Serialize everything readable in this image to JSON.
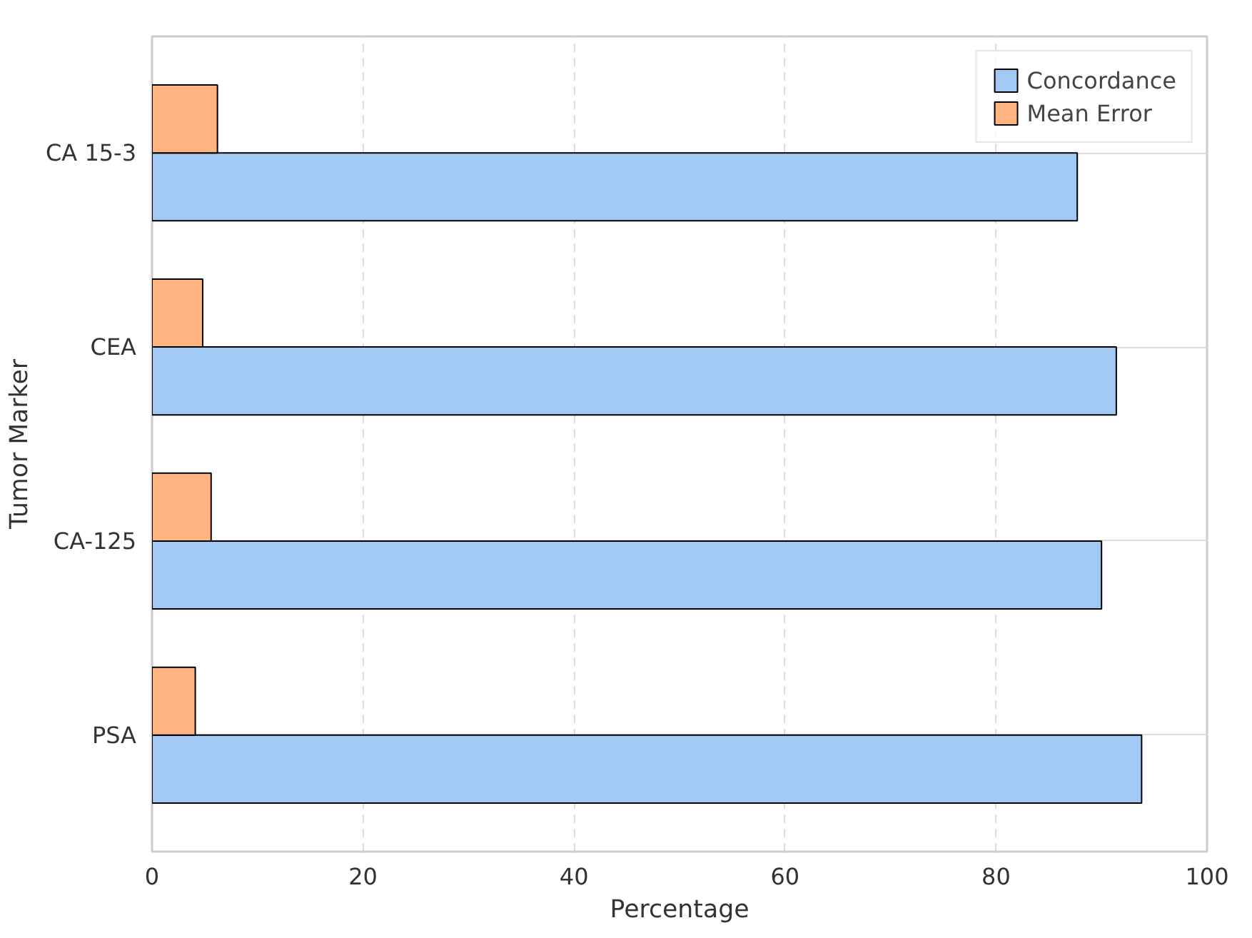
{
  "chart_data": {
    "type": "bar",
    "orientation": "horizontal",
    "xlabel": "Percentage",
    "ylabel": "Tumor Marker",
    "categories": [
      "CA 15-3",
      "CEA",
      "CA-125",
      "PSA"
    ],
    "series": [
      {
        "name": "Concordance",
        "color": "#a1c9f4",
        "values": [
          87.7,
          91.4,
          90.0,
          93.8
        ]
      },
      {
        "name": "Mean Error",
        "color": "#ffb482",
        "values": [
          6.2,
          4.8,
          5.6,
          4.1
        ]
      }
    ],
    "xlim": [
      0,
      100
    ],
    "xticks": [
      0,
      20,
      40,
      60,
      80,
      100
    ],
    "grid": true,
    "legend": "top right"
  }
}
